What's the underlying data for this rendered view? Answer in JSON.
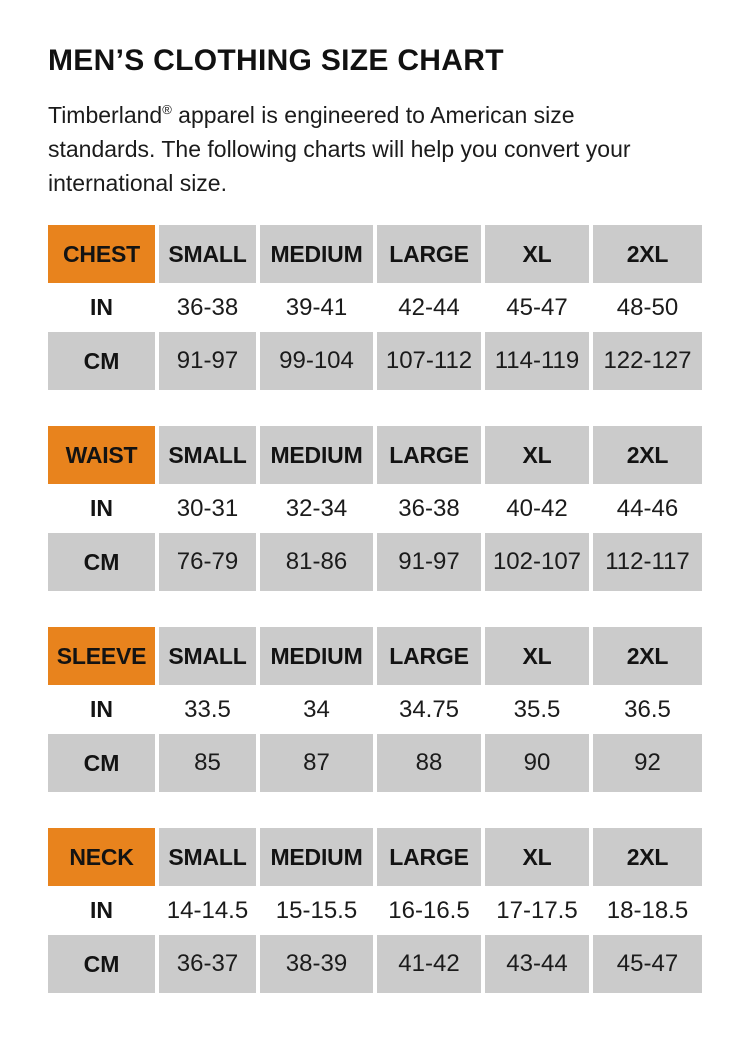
{
  "page": {
    "title": "MEN’S CLOTHING SIZE CHART"
  },
  "intro_lines": [
    {
      "pre": "Timberland",
      "sup": "®",
      "post": " apparel is engineered to American size"
    },
    {
      "pre": "standards. The following charts will help you convert your"
    },
    {
      "pre": "international size."
    }
  ],
  "colors": {
    "accent_orange": "#E8831D",
    "cell_gray": "#CBCBCB",
    "text_black": "#161616",
    "background": "#FFFFFF"
  },
  "size_columns": [
    "SMALL",
    "MEDIUM",
    "LARGE",
    "XL",
    "2XL"
  ],
  "row_labels": {
    "inches": "IN",
    "centimeters": "CM"
  },
  "tables": [
    {
      "label": "CHEST",
      "in": [
        "36-38",
        "39-41",
        "42-44",
        "45-47",
        "48-50"
      ],
      "cm": [
        "91-97",
        "99-104",
        "107-112",
        "114-119",
        "122-127"
      ]
    },
    {
      "label": "WAIST",
      "in": [
        "30-31",
        "32-34",
        "36-38",
        "40-42",
        "44-46"
      ],
      "cm": [
        "76-79",
        "81-86",
        "91-97",
        "102-107",
        "112-117"
      ]
    },
    {
      "label": "SLEEVE",
      "in": [
        "33.5",
        "34",
        "34.75",
        "35.5",
        "36.5"
      ],
      "cm": [
        "85",
        "87",
        "88",
        "90",
        "92"
      ]
    },
    {
      "label": "NECK",
      "in": [
        "14-14.5",
        "15-15.5",
        "16-16.5",
        "17-17.5",
        "18-18.5"
      ],
      "cm": [
        "36-37",
        "38-39",
        "41-42",
        "43-44",
        "45-47"
      ]
    }
  ]
}
